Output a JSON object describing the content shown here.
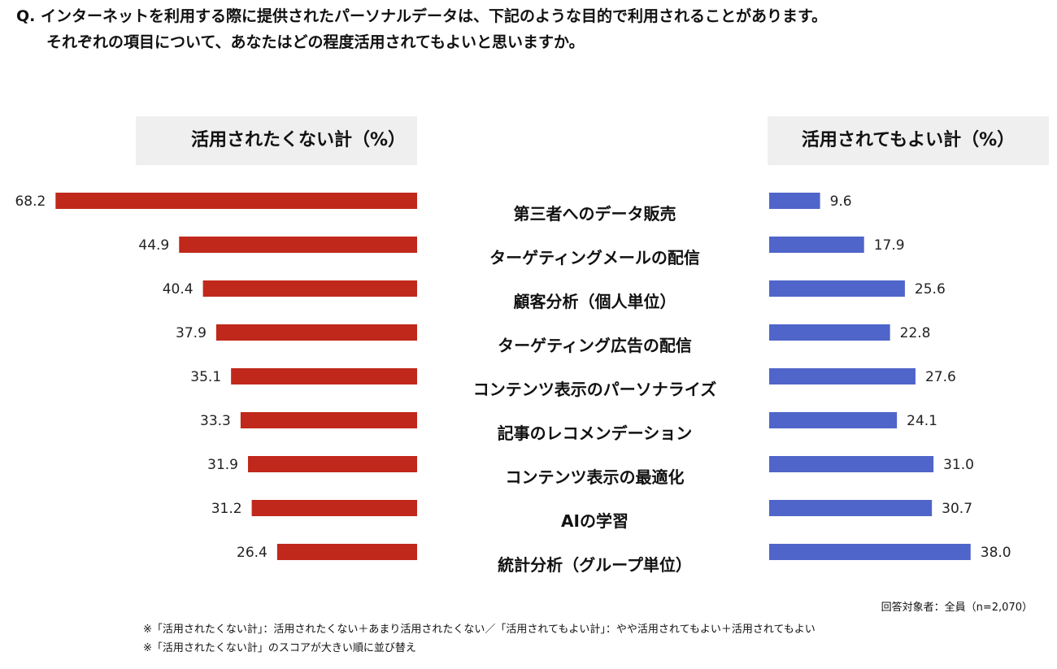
{
  "question": {
    "line1": "Q. インターネットを利用する際に提供されたパーソナルデータは、下記のような目的で利用されることがあります。",
    "line2": "それぞれの項目について、あなたはどの程度活用されてもよいと思いますか。"
  },
  "headers": {
    "left": "活用されたくない計（%）",
    "right": "活用されてもよい計（%）"
  },
  "chart_data": {
    "type": "bar",
    "orientation": "horizontal",
    "layout": "butterfly",
    "categories": [
      "第三者へのデータ販売",
      "ターゲティングメールの配信",
      "顧客分析（個人単位）",
      "ターゲティング広告の配信",
      "コンテンツ表示のパーソナライズ",
      "記事のレコメンデーション",
      "コンテンツ表示の最適化",
      "AIの学習",
      "統計分析（グループ単位）"
    ],
    "series": [
      {
        "name": "活用されたくない計（%）",
        "color": "#c0281b",
        "values": [
          68.2,
          44.9,
          40.4,
          37.9,
          35.1,
          33.3,
          31.9,
          31.2,
          26.4
        ],
        "labels": [
          "68.2",
          "44.9",
          "40.4",
          "37.9",
          "35.1",
          "33.3",
          "31.9",
          "31.2",
          "26.4"
        ]
      },
      {
        "name": "活用されてもよい計（%）",
        "color": "#4f65c9",
        "values": [
          9.6,
          17.9,
          25.6,
          22.8,
          27.6,
          24.1,
          31.0,
          30.7,
          38.0
        ],
        "labels": [
          "9.6",
          "17.9",
          "25.6",
          "22.8",
          "27.6",
          "24.1",
          "31.0",
          "30.7",
          "38.0"
        ]
      }
    ],
    "xlim": [
      0,
      70
    ]
  },
  "footer": {
    "respondents": "回答対象者：全員（n=2,070）",
    "note1": "※「活用されたくない計」：活用されたくない＋あまり活用されたくない／「活用されてもよい計」：やや活用されてもよい＋活用されてもよい",
    "note2": "※「活用されたくない計」のスコアが大きい順に並び替え"
  }
}
